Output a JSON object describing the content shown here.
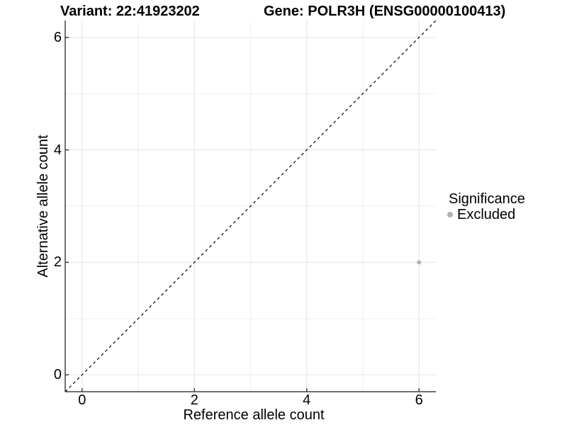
{
  "header": {
    "variant_title": "Variant: 22:41923202",
    "gene_title": "Gene: POLR3H (ENSG00000100413)"
  },
  "chart_data": {
    "type": "scatter",
    "xlabel": "Reference allele count",
    "ylabel": "Alternative allele count",
    "xlim": [
      -0.3,
      6.3
    ],
    "ylim": [
      -0.3,
      6.3
    ],
    "x_major_ticks": [
      0,
      2,
      4,
      6
    ],
    "y_major_ticks": [
      0,
      2,
      4,
      6
    ],
    "x_minor_gridlines": [
      1,
      3,
      5
    ],
    "y_minor_gridlines": [
      1,
      3,
      5
    ],
    "grid": "on",
    "legend_position": "right",
    "identity_line": {
      "style": "dashed",
      "equation": "y = x",
      "from": [
        -0.3,
        -0.3
      ],
      "to": [
        6.3,
        6.3
      ]
    },
    "series": [
      {
        "name": "Excluded",
        "color": "#b3b3b3",
        "points": [
          {
            "x": 6,
            "y": 2
          }
        ]
      }
    ],
    "legend": {
      "title": "Significance",
      "items": [
        {
          "label": "Excluded",
          "color": "#b3b3b3"
        }
      ]
    }
  },
  "colors": {
    "background": "#ffffff",
    "axis": "#404040",
    "tick": "#404040",
    "grid_major": "#e3e3e3",
    "grid_minor": "#efefef",
    "identity_line": "#000000",
    "excluded_point": "#b3b3b3",
    "text": "#000000"
  }
}
